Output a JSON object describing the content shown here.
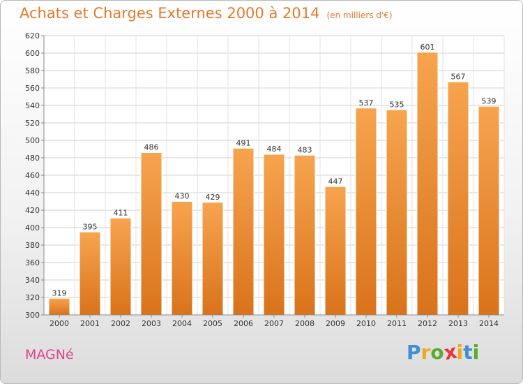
{
  "chart_data": {
    "type": "bar",
    "title": "Achats et Charges Externes 2000 à 2014",
    "subtitle": "(en milliers d'€)",
    "xlabel": "",
    "ylabel": "",
    "categories": [
      "2000",
      "2001",
      "2002",
      "2003",
      "2004",
      "2005",
      "2006",
      "2007",
      "2008",
      "2009",
      "2010",
      "2011",
      "2012",
      "2013",
      "2014"
    ],
    "values": [
      319,
      395,
      411,
      486,
      430,
      429,
      491,
      484,
      483,
      447,
      537,
      535,
      601,
      567,
      539
    ],
    "ylim": [
      300,
      620
    ],
    "yticks": [
      300,
      320,
      340,
      360,
      380,
      400,
      420,
      440,
      460,
      480,
      500,
      520,
      540,
      560,
      580,
      600,
      620
    ],
    "grid": true,
    "legend": "none",
    "bar_color_top": "#f7a44f",
    "bar_color_bottom": "#d9731b"
  },
  "location": "MAGNé",
  "logo": {
    "letters": [
      "P",
      "r",
      "o",
      "x",
      "i",
      "t",
      "i"
    ],
    "colors": [
      "#3d8fd6",
      "#f0a81c",
      "#5aaa2e",
      "#e8343a",
      "#f0a81c",
      "#3d8fd6",
      "#5aaa2e"
    ]
  }
}
